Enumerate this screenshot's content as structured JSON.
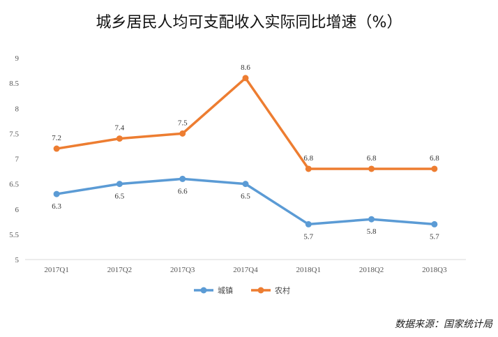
{
  "chart_data": {
    "type": "line",
    "title": "城乡居民人均可支配收入实际同比增速（%）",
    "categories": [
      "2017Q1",
      "2017Q2",
      "2017Q3",
      "2017Q4",
      "2018Q1",
      "2018Q2",
      "2018Q3"
    ],
    "series": [
      {
        "name": "城镇",
        "color": "#5b9bd5",
        "values": [
          6.3,
          6.5,
          6.6,
          6.5,
          5.7,
          5.8,
          5.7
        ]
      },
      {
        "name": "农村",
        "color": "#ed7d31",
        "values": [
          7.2,
          7.4,
          7.5,
          8.6,
          6.8,
          6.8,
          6.8
        ]
      }
    ],
    "ylim": [
      5,
      9
    ],
    "yticks": [
      "5",
      "5.5",
      "6",
      "6.5",
      "7",
      "7.5",
      "8",
      "8.5",
      "9"
    ],
    "grid": false,
    "legend_position": "bottom",
    "source": "数据来源：国家统计局"
  }
}
